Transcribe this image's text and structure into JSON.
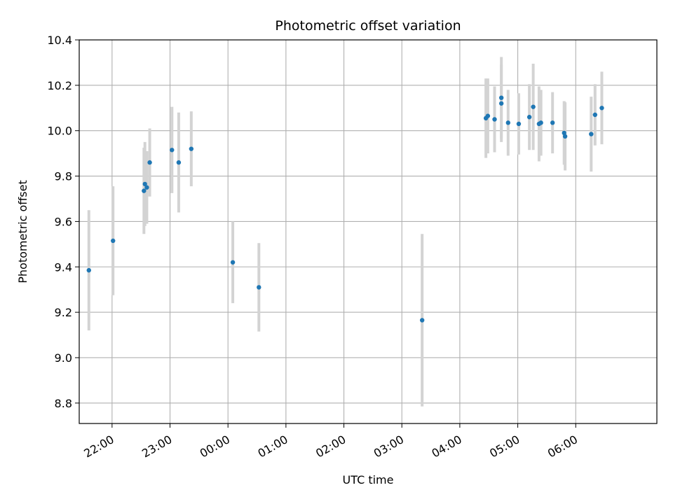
{
  "chart_data": {
    "type": "scatter",
    "title": "Photometric offset variation",
    "xlabel": "UTC time",
    "ylabel": "Photometric offset",
    "ylim": [
      8.71,
      10.4
    ],
    "xlim": [
      "21:26",
      "07:24"
    ],
    "grid": true,
    "x_ticks": [
      {
        "t": "22:00",
        "label": "22:00"
      },
      {
        "t": "23:00",
        "label": "23:00"
      },
      {
        "t": "00:00",
        "label": "00:00"
      },
      {
        "t": "01:00",
        "label": "01:00"
      },
      {
        "t": "02:00",
        "label": "02:00"
      },
      {
        "t": "03:00",
        "label": "03:00"
      },
      {
        "t": "04:00",
        "label": "04:00"
      },
      {
        "t": "05:00",
        "label": "05:00"
      },
      {
        "t": "06:00",
        "label": "06:00"
      }
    ],
    "y_ticks": [
      {
        "v": 8.8,
        "label": "8.8"
      },
      {
        "v": 9.0,
        "label": "9.0"
      },
      {
        "v": 9.2,
        "label": "9.2"
      },
      {
        "v": 9.4,
        "label": "9.4"
      },
      {
        "v": 9.6,
        "label": "9.6"
      },
      {
        "v": 9.8,
        "label": "9.8"
      },
      {
        "v": 10.0,
        "label": "10.0"
      },
      {
        "v": 10.2,
        "label": "10.2"
      },
      {
        "v": 10.4,
        "label": "10.4"
      }
    ],
    "series": [
      {
        "marker_color": "#1f77b4",
        "errorbar_color": "#d3d3d3",
        "points": [
          {
            "t": "21:36",
            "y": 9.385,
            "err": 0.265
          },
          {
            "t": "22:01",
            "y": 9.515,
            "err": 0.24
          },
          {
            "t": "22:33",
            "y": 9.735,
            "err": 0.19
          },
          {
            "t": "22:34",
            "y": 9.765,
            "err": 0.185
          },
          {
            "t": "22:36",
            "y": 9.75,
            "err": 0.16
          },
          {
            "t": "22:39",
            "y": 9.86,
            "err": 0.15
          },
          {
            "t": "23:02",
            "y": 9.915,
            "err": 0.19
          },
          {
            "t": "23:09",
            "y": 9.86,
            "err": 0.22
          },
          {
            "t": "23:22",
            "y": 9.92,
            "err": 0.165
          },
          {
            "t": "00:05",
            "y": 9.42,
            "err": 0.18
          },
          {
            "t": "00:32",
            "y": 9.31,
            "err": 0.195
          },
          {
            "t": "03:21",
            "y": 9.165,
            "err": 0.38
          },
          {
            "t": "04:27",
            "y": 10.055,
            "err": 0.175
          },
          {
            "t": "04:29",
            "y": 10.065,
            "err": 0.165
          },
          {
            "t": "04:36",
            "y": 10.05,
            "err": 0.145
          },
          {
            "t": "04:43",
            "y": 10.145,
            "err": 0.18
          },
          {
            "t": "04:43",
            "y": 10.12,
            "err": 0.17
          },
          {
            "t": "04:50",
            "y": 10.035,
            "err": 0.145
          },
          {
            "t": "05:01",
            "y": 10.03,
            "err": 0.135
          },
          {
            "t": "05:12",
            "y": 10.06,
            "err": 0.145
          },
          {
            "t": "05:16",
            "y": 10.105,
            "err": 0.19
          },
          {
            "t": "05:22",
            "y": 10.03,
            "err": 0.165
          },
          {
            "t": "05:24",
            "y": 10.035,
            "err": 0.145
          },
          {
            "t": "05:36",
            "y": 10.035,
            "err": 0.135
          },
          {
            "t": "05:48",
            "y": 9.99,
            "err": 0.14
          },
          {
            "t": "05:49",
            "y": 9.975,
            "err": 0.15
          },
          {
            "t": "06:16",
            "y": 9.985,
            "err": 0.165
          },
          {
            "t": "06:20",
            "y": 10.07,
            "err": 0.135
          },
          {
            "t": "06:27",
            "y": 10.1,
            "err": 0.16
          }
        ]
      }
    ]
  }
}
